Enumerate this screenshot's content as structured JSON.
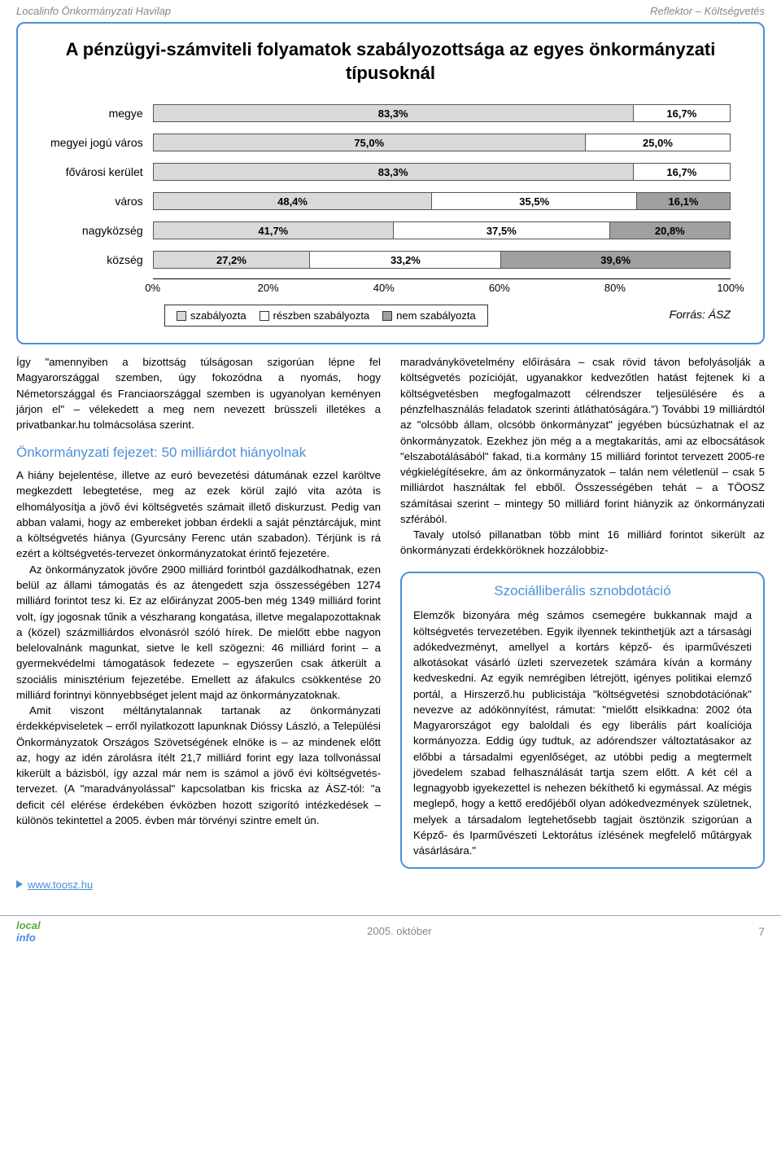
{
  "header": {
    "left": "Localinfo Önkormányzati Havilap",
    "right": "Reflektor – Költségvetés"
  },
  "chart": {
    "type": "bar",
    "title": "A pénzügyi-számviteli folyamatok szabályozottsága az egyes önkormányzati típusoknál",
    "categories": [
      "megye",
      "megyei jogú város",
      "fővárosi kerület",
      "város",
      "nagyközség",
      "község"
    ],
    "series": [
      {
        "name": "szabályozta",
        "color": "#d9d9d9",
        "values": [
          83.3,
          75.0,
          83.3,
          48.4,
          41.7,
          27.2
        ]
      },
      {
        "name": "részben szabályozta",
        "color": "#ffffff",
        "values": [
          16.7,
          25.0,
          16.7,
          35.5,
          37.5,
          33.2
        ]
      },
      {
        "name": "nem szabályozta",
        "color": "#a0a0a0",
        "values": [
          0,
          0,
          0,
          16.1,
          20.8,
          39.6
        ]
      }
    ],
    "value_labels": [
      [
        "83,3%",
        "16,7%"
      ],
      [
        "75,0%",
        "25,0%"
      ],
      [
        "83,3%",
        "16,7%"
      ],
      [
        "48,4%",
        "35,5%",
        "16,1%"
      ],
      [
        "41,7%",
        "37,5%",
        "20,8%"
      ],
      [
        "27,2%",
        "33,2%",
        "39,6%"
      ]
    ],
    "xlim": [
      0,
      100
    ],
    "xtick_step": 20,
    "xtick_labels": [
      "0%",
      "20%",
      "40%",
      "60%",
      "80%",
      "100%"
    ],
    "source": "Forrás: ÁSZ",
    "border_color": "#4a90d9",
    "axis_color": "#000000",
    "label_fontsize": 14,
    "value_fontsize": 13
  },
  "body": {
    "col1": {
      "p1": "Így \"amennyiben a bizottság túlságosan szigorúan lépne fel Magyarországgal szemben, úgy fokozódna a nyomás, hogy Németországgal és Franciaországgal szemben is ugyanolyan keményen járjon el\" – vélekedett a meg nem nevezett brüsszeli illetékes a privatbankar.hu tolmácsolása szerint.",
      "h1": "Önkormányzati fejezet: 50 milliárdot hiányolnak",
      "p2": "A hiány bejelentése, illetve az euró bevezetési dátumának ezzel karöltve megkezdett lebegtetése, meg az ezek körül zajló vita azóta is elhomályosítja a jövő évi költségvetés számait illető diskurzust. Pedig van abban valami, hogy az embereket jobban érdekli a saját pénztárcájuk, mint a költségvetés hiánya (Gyurcsány Ferenc után szabadon). Térjünk is rá ezért a költségvetés-tervezet önkormányzatokat érintő fejezetére.",
      "p3": "Az önkormányzatok jövőre 2900 milliárd forintból gazdálkodhatnak, ezen belül az állami támogatás és az átengedett szja összességében 1274 milliárd forintot tesz ki. Ez az előirányzat 2005-ben még 1349 milliárd forint volt, így jogosnak tűnik a vészharang kongatása, illetve megalapozottaknak a (közel) százmilliárdos elvonásról szóló hírek. De mielőtt ebbe nagyon belelovalnánk magunkat, sietve le kell szögezni: 46 milliárd forint – a gyermekvédelmi támogatások fedezete – egyszerűen csak átkerült a szociális minisztérium fejezetébe. Emellett az áfakulcs csökkentése 20 milliárd forintnyi könnyebbséget jelent majd az önkormányzatoknak.",
      "p4": "Amit viszont méltánytalannak tartanak az önkormányzati érdekképviseletek – erről nyilatkozott lapunknak Dióssy László, a Települési Önkormányzatok Országos Szövetségének elnöke is – az mindenek előtt az, hogy az idén zárolásra ítélt 21,7 milliárd forint egy laza tollvonással kikerült a bázisból, így azzal már nem is számol a jövő évi költségvetés-tervezet. (A \"maradványolással\" kapcsolatban kis fricska az ÁSZ-tól: \"a deficit cél elérése érdekében évközben hozott szigorító intézkedések – különös tekintettel a 2005. évben már törvényi szintre emelt ún."
    },
    "col2": {
      "p1": "maradványkövetelmény előírására – csak rövid távon befolyásolják a költségvetés pozícióját, ugyanakkor kedvezőtlen hatást fejtenek ki a költségvetésben megfogalmazott célrendszer teljesülésére és a pénzfelhasználás feladatok szerinti átláthatóságára.\") További 19 milliárdtól az \"olcsóbb állam, olcsóbb önkormányzat\" jegyében búcsúzhatnak el az önkormányzatok. Ezekhez jön még a a megtakarítás, ami az elbocsátások \"elszabotálásából\" fakad, ti.a kormány 15 milliárd forintot tervezett 2005-re végkielégítésekre, ám az önkormányzatok – talán nem véletlenül – csak 5 milliárdot használtak fel ebből. Összességében tehát – a TÖOSZ számításai szerint – mintegy 50 milliárd forint hiányzik az önkormányzati szférából.",
      "p2": "Tavaly utolsó pillanatban több mint 16 milliárd forintot sikerült az önkormányzati érdekköröknek hozzálobbiz-",
      "box_title": "Szociálliberális sznobdotáció",
      "box_text": "Elemzők bizonyára még számos csemegére bukkannak majd a költségvetés tervezetében. Egyik ilyennek tekinthetjük azt a társasági adókedvezményt, amellyel a kortárs képző- és iparművészeti alkotásokat vásárló üzleti szervezetek számára kíván a kormány kedveskedni. Az egyik nemrégiben létrejött, igényes politikai elemző portál, a Hirszerző.hu publicistája \"költségvetési sznobdotációnak\" nevezve az adókönnyítést, rámutat: \"mielőtt elsikkadna: 2002 óta Magyarországot egy baloldali és egy liberális párt koalíciója kormányozza. Eddig úgy tudtuk, az adórendszer változtatásakor az előbbi a társadalmi egyenlőséget, az utóbbi pedig a megtermelt jövedelem szabad felhasználását tartja szem előtt. A két cél a legnagyobb igyekezettel is nehezen békíthető ki egymással. Az mégis meglepő, hogy a kettő eredőjéből olyan adókedvezmények születnek, melyek a társadalom legtehetősebb tagjait ösztönzik szigorúan a Képző- és Iparművészeti Lektorátus ízlésének megfelelő műtárgyak vásárlására.\""
    }
  },
  "link": {
    "url": "www.toosz.hu"
  },
  "footer": {
    "date": "2005. október",
    "page": "7",
    "logo_line1": "local",
    "logo_line2": "info"
  }
}
